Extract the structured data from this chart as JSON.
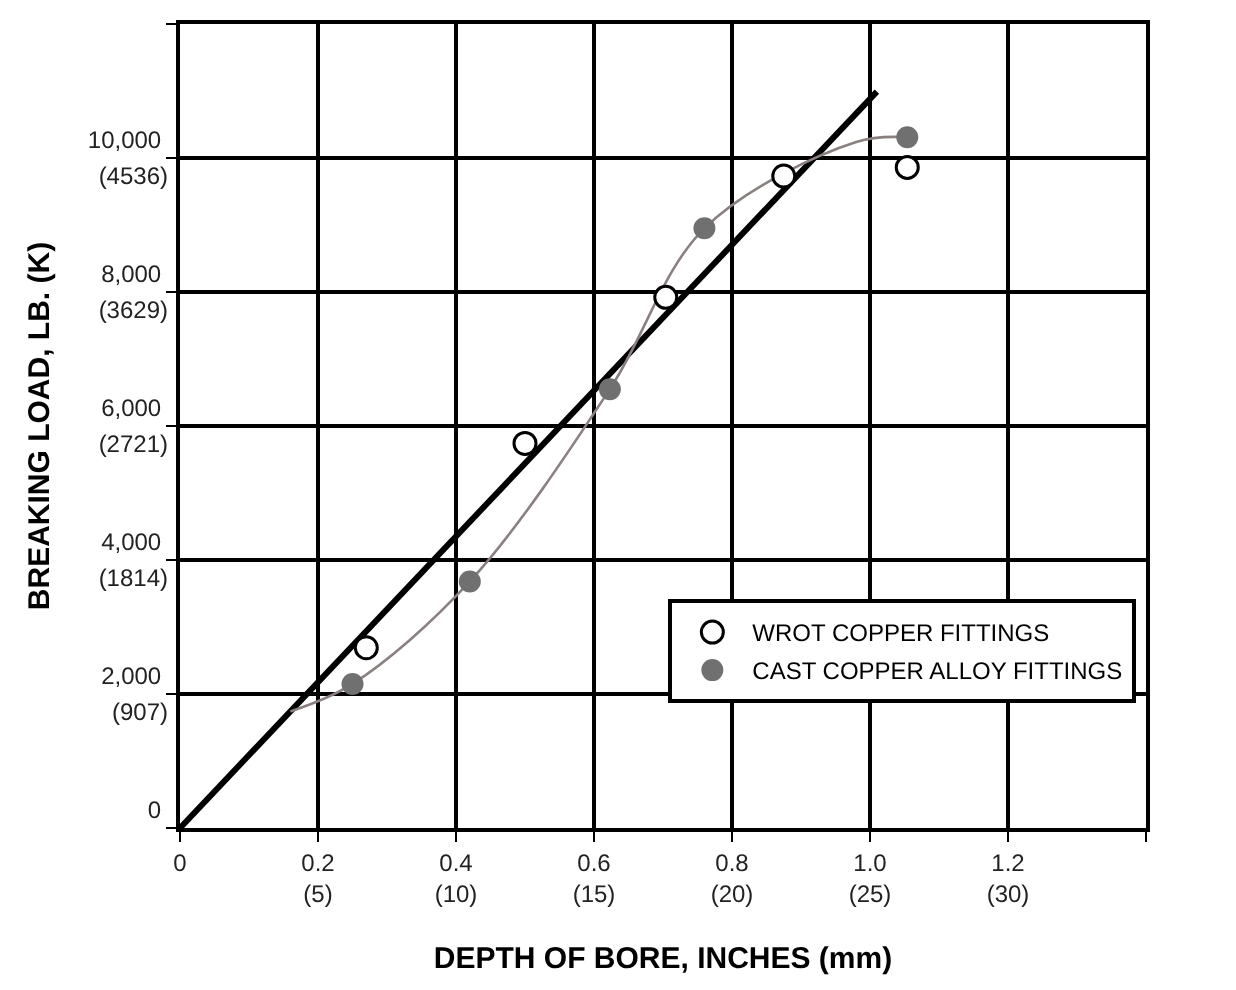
{
  "chart_data": {
    "type": "scatter",
    "xlabel": "DEPTH OF BORE, INCHES (mm)",
    "ylabel": "BREAKING LOAD, LB. (K)",
    "xlim": [
      0,
      1.4
    ],
    "ylim": [
      0,
      12000
    ],
    "xticks": [
      0,
      0.2,
      0.4,
      0.6,
      0.8,
      {
        "value": 1.0,
        "label": "1.0"
      },
      1.2,
      {
        "value": 1.4,
        "label": null
      }
    ],
    "yticks": [
      0,
      {
        "value": 2000,
        "label": "2,000"
      },
      {
        "value": 4000,
        "label": "4,000"
      },
      {
        "value": 6000,
        "label": "6,000"
      },
      {
        "value": 8000,
        "label": "8,000"
      },
      {
        "value": 10000,
        "label": "10,000"
      },
      {
        "value": 12000,
        "label": null
      }
    ],
    "x2lim": [
      0,
      35
    ],
    "x2ticks": [
      {
        "value": 5,
        "label": "(5)"
      },
      {
        "value": 10,
        "label": "(10)"
      },
      {
        "value": 15,
        "label": "(15)"
      },
      {
        "value": 20,
        "label": "(20)"
      },
      {
        "value": 25,
        "label": "(25)"
      },
      {
        "value": 30,
        "label": "(30)"
      }
    ],
    "y2lim": [
      0,
      5443
    ],
    "y2ticks": [
      {
        "value": 907,
        "label": "(907)"
      },
      {
        "value": 1814,
        "label": "(1814)"
      },
      {
        "value": 2721,
        "label": "(2721)"
      },
      {
        "value": 3629,
        "label": "(3629)"
      },
      {
        "value": 4536,
        "label": "(4536)"
      }
    ],
    "grid": true,
    "legend": "bottom right",
    "marker": "circle",
    "series": [
      {
        "type": "line",
        "color": "#000000",
        "x": [
          0,
          1.01
        ],
        "values": [
          0,
          10990
        ],
        "marker": "none"
      },
      {
        "type": "line",
        "color": "#8a8080",
        "x": [
          0.16,
          0.25,
          0.42,
          0.623,
          0.76,
          0.98,
          1.054
        ],
        "values": [
          1740,
          2150,
          3680,
          6550,
          8950,
          10240,
          10310
        ],
        "marker": "none"
      },
      {
        "name": "WROT COPPER FITTINGS",
        "color": "#ffffff",
        "x": [
          0.27,
          0.5,
          0.704,
          0.875,
          1.054
        ],
        "values": [
          2690,
          5740,
          7920,
          9730,
          9860
        ]
      },
      {
        "name": "CAST COPPER ALLOY FITTINGS",
        "color": "#707070",
        "x": [
          0.25,
          0.42,
          0.623,
          0.76,
          1.054
        ],
        "values": [
          2150,
          3680,
          6550,
          8950,
          10310
        ]
      }
    ]
  }
}
